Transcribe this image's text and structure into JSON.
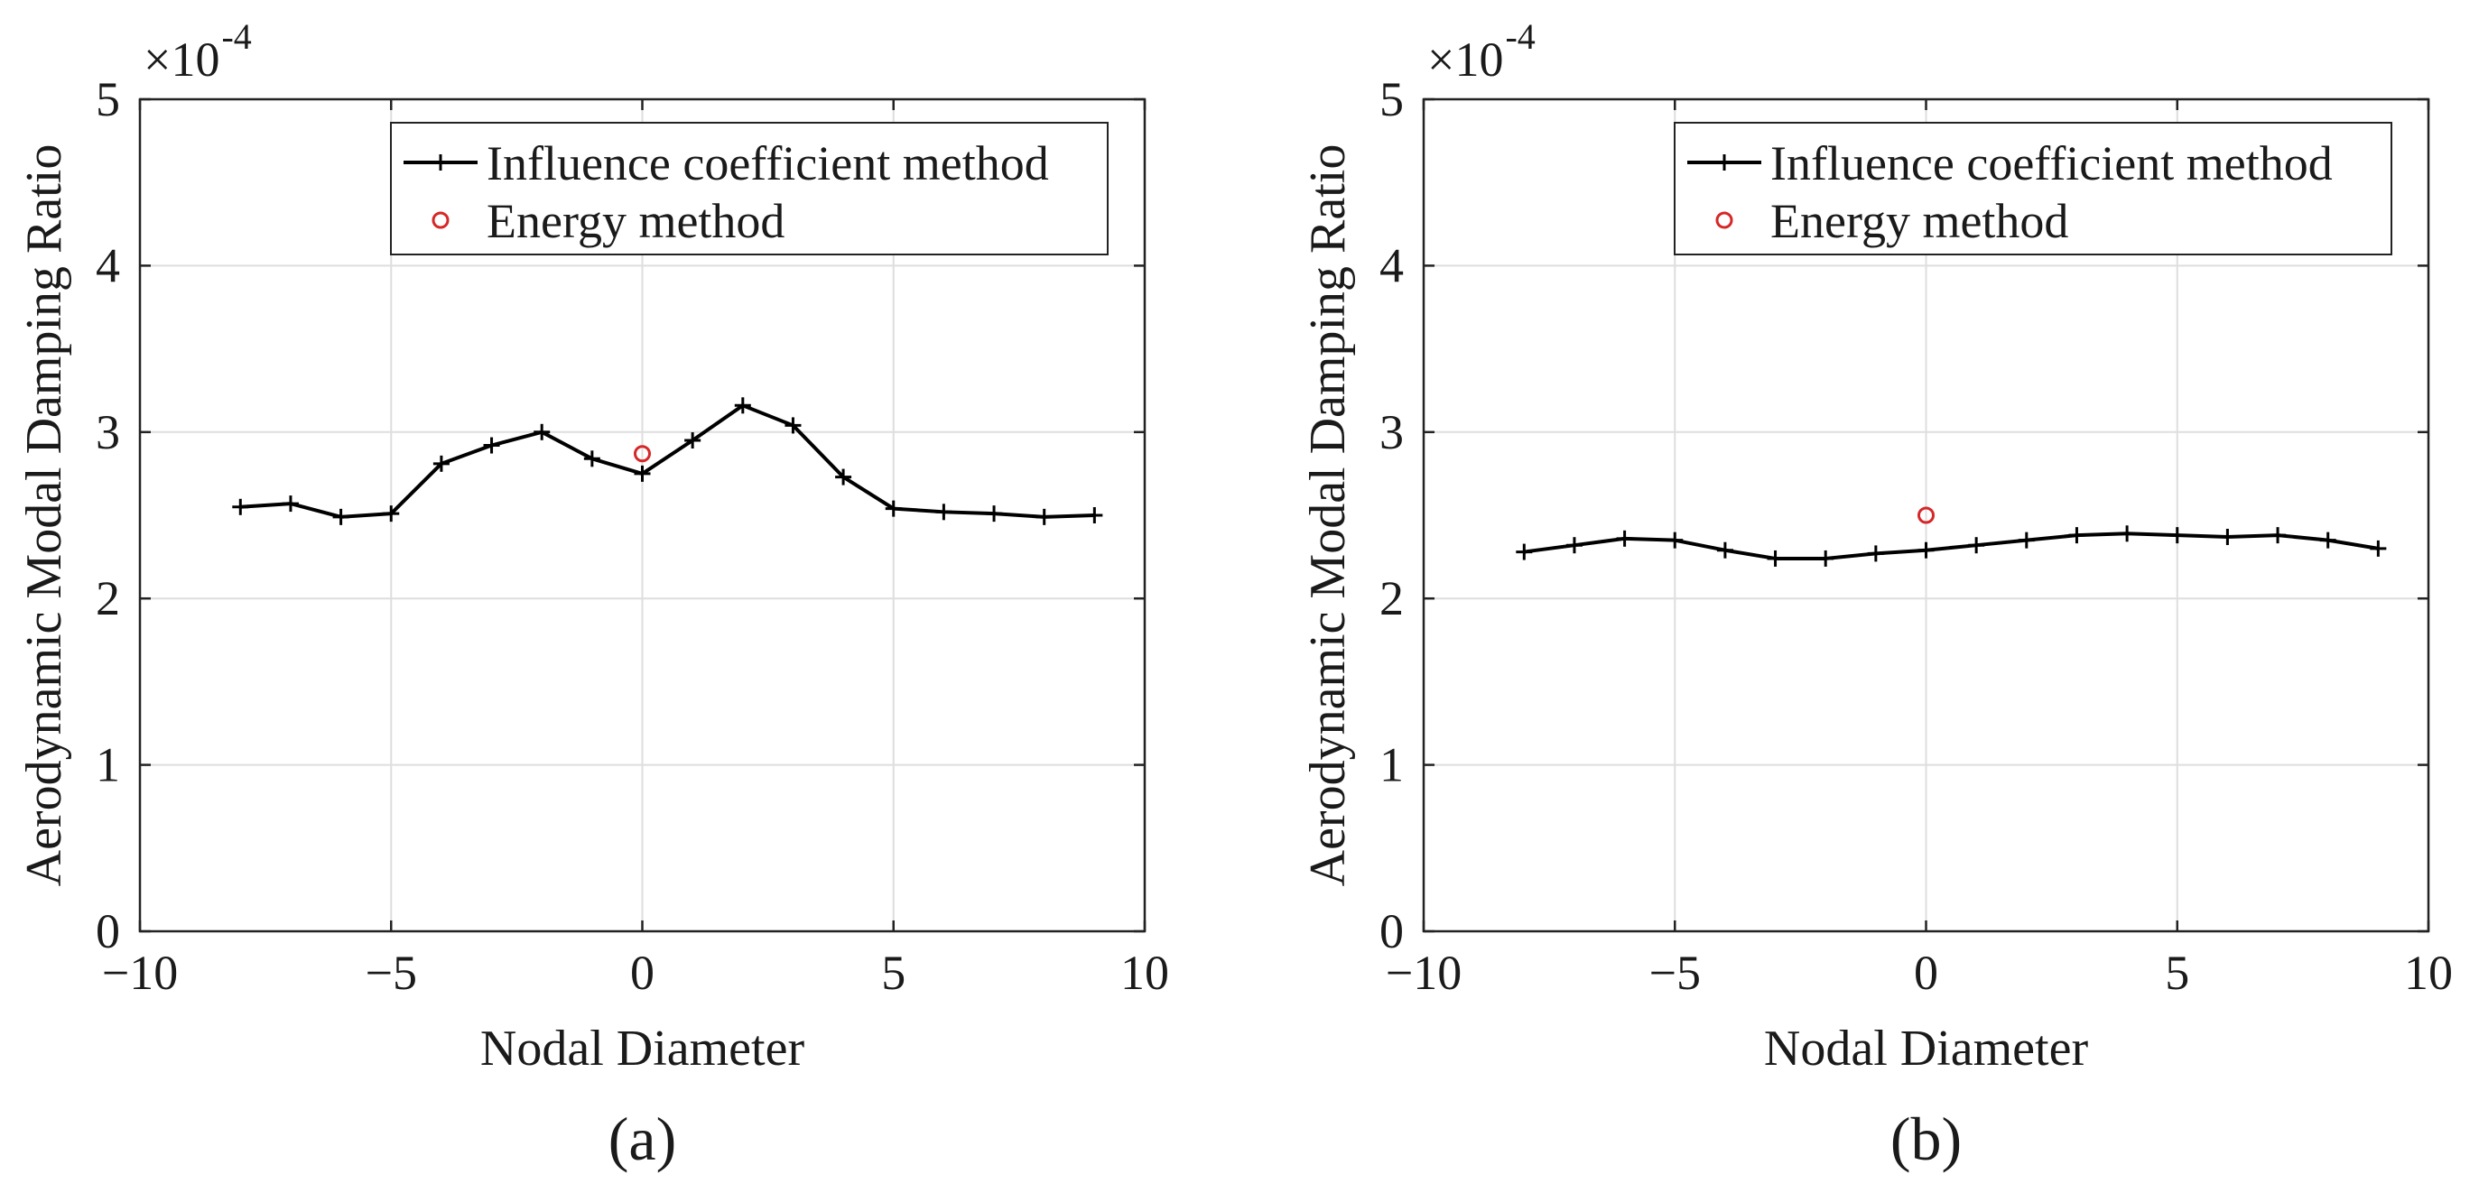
{
  "chart_data": [
    {
      "type": "line",
      "panel_label": "(a)",
      "title": "",
      "xlabel": "Nodal Diameter",
      "ylabel": "Aerodynamic Modal Damping Ratio",
      "y_exponent": "×10",
      "y_exponent_power": "-4",
      "xlim": [
        -10,
        10
      ],
      "ylim": [
        0,
        5
      ],
      "xticks": [
        -10,
        -5,
        0,
        5,
        10
      ],
      "xtick_labels": [
        "−10",
        "−5",
        "0",
        "5",
        "10"
      ],
      "yticks": [
        0,
        1,
        2,
        3,
        4,
        5
      ],
      "ytick_labels": [
        "0",
        "1",
        "2",
        "3",
        "4",
        "5"
      ],
      "grid": true,
      "legend_position": "top-right",
      "series": [
        {
          "name": "Influence coefficient method",
          "marker": "+",
          "color": "#000000",
          "x": [
            -8,
            -7,
            -6,
            -5,
            -4,
            -3,
            -2,
            -1,
            0,
            1,
            2,
            3,
            4,
            5,
            6,
            7,
            8,
            9
          ],
          "values": [
            2.55,
            2.57,
            2.49,
            2.51,
            2.81,
            2.92,
            3.0,
            2.84,
            2.75,
            2.95,
            3.16,
            3.04,
            2.73,
            2.54,
            2.52,
            2.51,
            2.49,
            2.5
          ]
        },
        {
          "name": "Energy method",
          "marker": "o",
          "color": "#d62728",
          "x": [
            0
          ],
          "values": [
            2.87
          ]
        }
      ]
    },
    {
      "type": "line",
      "panel_label": "(b)",
      "title": "",
      "xlabel": "Nodal Diameter",
      "ylabel": "Aerodynamic Modal Damping Ratio",
      "y_exponent": "×10",
      "y_exponent_power": "-4",
      "xlim": [
        -10,
        10
      ],
      "ylim": [
        0,
        5
      ],
      "xticks": [
        -10,
        -5,
        0,
        5,
        10
      ],
      "xtick_labels": [
        "−10",
        "−5",
        "0",
        "5",
        "10"
      ],
      "yticks": [
        0,
        1,
        2,
        3,
        4,
        5
      ],
      "ytick_labels": [
        "0",
        "1",
        "2",
        "3",
        "4",
        "5"
      ],
      "grid": true,
      "legend_position": "top-right",
      "series": [
        {
          "name": "Influence coefficient method",
          "marker": "+",
          "color": "#000000",
          "x": [
            -8,
            -7,
            -6,
            -5,
            -4,
            -3,
            -2,
            -1,
            0,
            1,
            2,
            3,
            4,
            5,
            6,
            7,
            8,
            9
          ],
          "values": [
            2.28,
            2.32,
            2.36,
            2.35,
            2.29,
            2.24,
            2.24,
            2.27,
            2.29,
            2.32,
            2.35,
            2.38,
            2.39,
            2.38,
            2.37,
            2.38,
            2.35,
            2.3
          ]
        },
        {
          "name": "Energy method",
          "marker": "o",
          "color": "#d62728",
          "x": [
            0
          ],
          "values": [
            2.5
          ]
        }
      ]
    }
  ]
}
